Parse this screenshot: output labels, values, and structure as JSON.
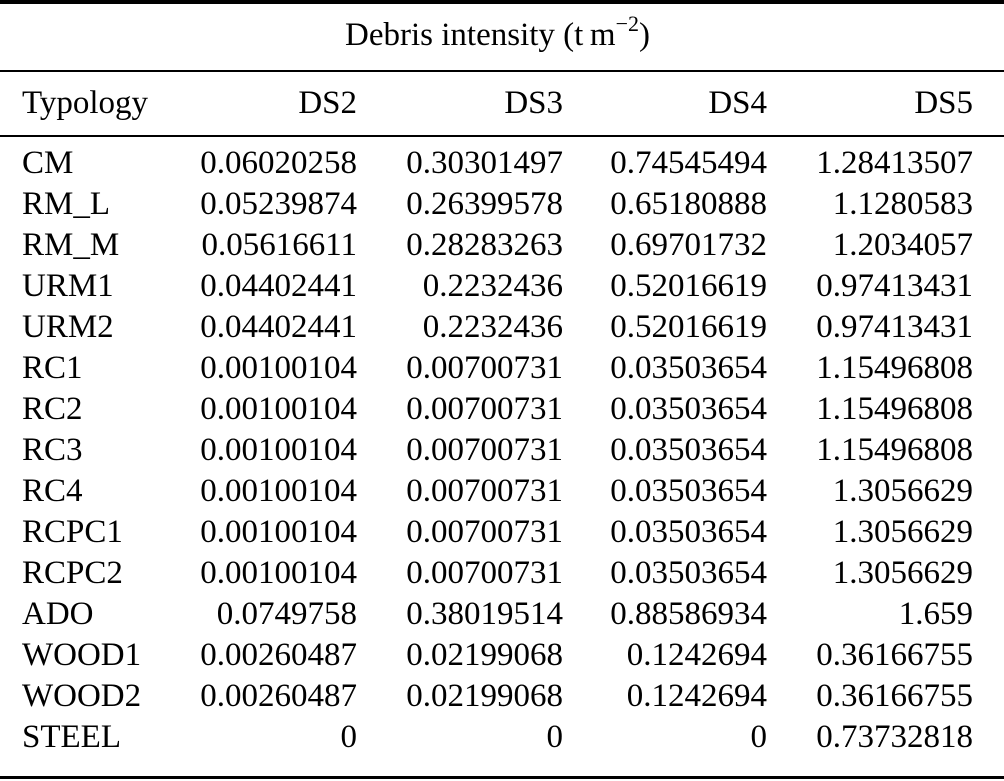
{
  "colors": {
    "text": "#000000",
    "background": "#ffffff",
    "rule": "#000000"
  },
  "table": {
    "title": {
      "prefix": "Debris intensity (t m",
      "exponent": "−2",
      "suffix": ")"
    },
    "columns": [
      "Typology",
      "DS2",
      "DS3",
      "DS4",
      "DS5"
    ],
    "rows": [
      [
        "CM",
        "0.06020258",
        "0.30301497",
        "0.74545494",
        "1.28413507"
      ],
      [
        "RM_L",
        "0.05239874",
        "0.26399578",
        "0.65180888",
        "1.1280583"
      ],
      [
        "RM_M",
        "0.05616611",
        "0.28283263",
        "0.69701732",
        "1.2034057"
      ],
      [
        "URM1",
        "0.04402441",
        "0.2232436",
        "0.52016619",
        "0.97413431"
      ],
      [
        "URM2",
        "0.04402441",
        "0.2232436",
        "0.52016619",
        "0.97413431"
      ],
      [
        "RC1",
        "0.00100104",
        "0.00700731",
        "0.03503654",
        "1.15496808"
      ],
      [
        "RC2",
        "0.00100104",
        "0.00700731",
        "0.03503654",
        "1.15496808"
      ],
      [
        "RC3",
        "0.00100104",
        "0.00700731",
        "0.03503654",
        "1.15496808"
      ],
      [
        "RC4",
        "0.00100104",
        "0.00700731",
        "0.03503654",
        "1.3056629"
      ],
      [
        "RCPC1",
        "0.00100104",
        "0.00700731",
        "0.03503654",
        "1.3056629"
      ],
      [
        "RCPC2",
        "0.00100104",
        "0.00700731",
        "0.03503654",
        "1.3056629"
      ],
      [
        "ADO",
        "0.0749758",
        "0.38019514",
        "0.88586934",
        "1.659"
      ],
      [
        "WOOD1",
        "0.00260487",
        "0.02199068",
        "0.1242694",
        "0.36166755"
      ],
      [
        "WOOD2",
        "0.00260487",
        "0.02199068",
        "0.1242694",
        "0.36166755"
      ],
      [
        "STEEL",
        "0",
        "0",
        "0",
        "0.73732818"
      ]
    ]
  }
}
